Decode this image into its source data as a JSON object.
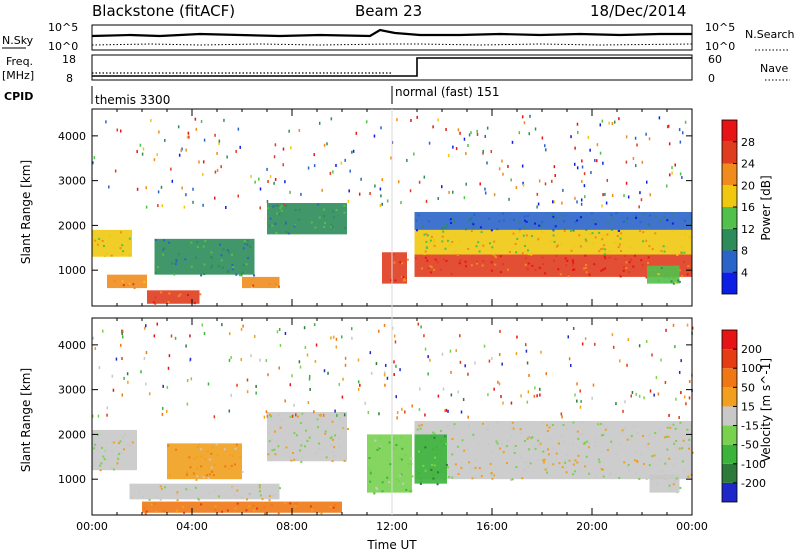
{
  "header": {
    "station": "Blackstone (fitACF)",
    "beam": "Beam 23",
    "date": "18/Dec/2014"
  },
  "strip_panels": {
    "nsky": {
      "label": "N.Sky",
      "right_label": "N.Search",
      "left_ticks": [
        "10^5",
        "10^0"
      ],
      "right_ticks": [
        "10^5",
        "10^0"
      ]
    },
    "freq": {
      "label_line1": "Freq.",
      "label_line2": "[MHz]",
      "right_label": "Nave",
      "left_ticks": [
        "18",
        "8"
      ],
      "right_ticks": [
        "60",
        "0"
      ]
    },
    "cpid": {
      "label": "CPID",
      "modes": [
        {
          "name": "themis 3300",
          "start_hour": 0
        },
        {
          "name": "normal (fast) 151",
          "start_hour": 12.0
        }
      ]
    }
  },
  "chart_data": [
    {
      "type": "heatmap",
      "title": "",
      "parameter": "Power",
      "ylabel": "Slant Range [km]",
      "xlabel": "",
      "xlim_hours": [
        0,
        24
      ],
      "ylim_km": [
        200,
        4600
      ],
      "yticks": [
        "1000",
        "2000",
        "3000",
        "4000"
      ],
      "colorbar_label": "Power [dB]",
      "colorbar_ticks": [
        "28",
        "24",
        "20",
        "16",
        "12",
        "8",
        "4"
      ],
      "colors": [
        "#0c1ee6",
        "#2a64c8",
        "#2e8c5a",
        "#52c04a",
        "#f0c810",
        "#f08c1e",
        "#e03c1e",
        "#e61414"
      ],
      "echo_regions": [
        {
          "t0": 0.0,
          "t1": 1.6,
          "r0": 1300,
          "r1": 1900,
          "level": 4
        },
        {
          "t0": 0.6,
          "t1": 2.2,
          "r0": 600,
          "r1": 900,
          "level": 5
        },
        {
          "t0": 2.2,
          "t1": 4.3,
          "r0": 250,
          "r1": 550,
          "level": 6
        },
        {
          "t0": 2.5,
          "t1": 6.5,
          "r0": 900,
          "r1": 1700,
          "level": 2
        },
        {
          "t0": 6.0,
          "t1": 7.5,
          "r0": 600,
          "r1": 850,
          "level": 5
        },
        {
          "t0": 7.0,
          "t1": 10.2,
          "r0": 1800,
          "r1": 2500,
          "level": 2
        },
        {
          "t0": 11.6,
          "t1": 12.6,
          "r0": 700,
          "r1": 1400,
          "level": 6
        },
        {
          "t0": 12.9,
          "t1": 24.0,
          "r0": 850,
          "r1": 1350,
          "level": 6
        },
        {
          "t0": 12.9,
          "t1": 24.0,
          "r0": 1350,
          "r1": 1900,
          "level": 4
        },
        {
          "t0": 12.9,
          "t1": 24.0,
          "r0": 1900,
          "r1": 2300,
          "level": 1
        },
        {
          "t0": 22.2,
          "t1": 23.5,
          "r0": 700,
          "r1": 1100,
          "level": 3
        }
      ]
    },
    {
      "type": "heatmap",
      "title": "",
      "parameter": "Velocity",
      "ylabel": "Slant Range [km]",
      "xlabel": "Time UT",
      "xlim_hours": [
        0,
        24
      ],
      "ylim_km": [
        200,
        4600
      ],
      "xticks": [
        "00:00",
        "04:00",
        "08:00",
        "12:00",
        "16:00",
        "20:00",
        "00:00"
      ],
      "yticks": [
        "1000",
        "2000",
        "3000",
        "4000"
      ],
      "colorbar_label": "Velocity [m s^-1]",
      "colorbar_ticks": [
        "200",
        "100",
        "50",
        "15",
        "-15",
        "-50",
        "-100",
        "-200"
      ],
      "colors": [
        "#1e28c8",
        "#2e7a3a",
        "#3cb43c",
        "#78d250",
        "#c8c8c8",
        "#f0a01e",
        "#f07814",
        "#e63c14",
        "#e61414"
      ],
      "echo_regions": [
        {
          "t0": 0.0,
          "t1": 1.8,
          "r0": 1200,
          "r1": 2100,
          "level": 4
        },
        {
          "t0": 1.5,
          "t1": 7.5,
          "r0": 550,
          "r1": 900,
          "level": 4
        },
        {
          "t0": 3.0,
          "t1": 6.0,
          "r0": 1000,
          "r1": 1800,
          "level": 5
        },
        {
          "t0": 7.0,
          "t1": 10.2,
          "r0": 1400,
          "r1": 2500,
          "level": 4
        },
        {
          "t0": 2.0,
          "t1": 10.0,
          "r0": 250,
          "r1": 500,
          "level": 6
        },
        {
          "t0": 11.0,
          "t1": 12.8,
          "r0": 700,
          "r1": 2000,
          "level": 3
        },
        {
          "t0": 12.9,
          "t1": 24.0,
          "r0": 1000,
          "r1": 2300,
          "level": 4
        },
        {
          "t0": 12.9,
          "t1": 14.2,
          "r0": 900,
          "r1": 2000,
          "level": 2
        },
        {
          "t0": 22.3,
          "t1": 23.5,
          "r0": 700,
          "r1": 1100,
          "level": 4
        }
      ]
    }
  ]
}
